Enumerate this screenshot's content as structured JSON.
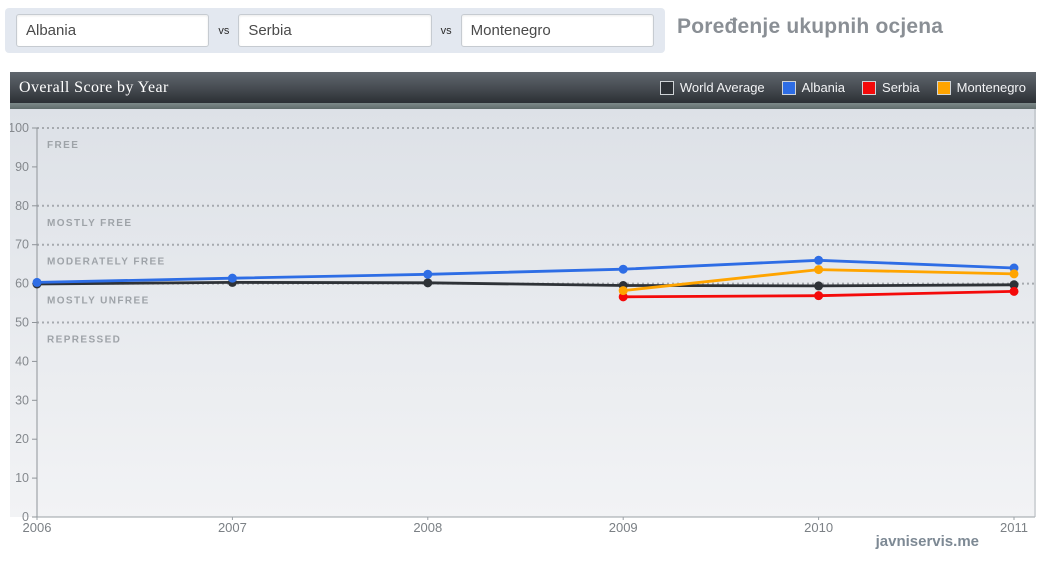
{
  "page": {
    "watermark": "javniservis.me"
  },
  "compare_bar": {
    "separator": "vs",
    "inputs": [
      {
        "value": "Albania"
      },
      {
        "value": "Serbia"
      },
      {
        "value": "Montenegro"
      }
    ],
    "title": "Poređenje ukupnih ocjena"
  },
  "chart": {
    "header_title": "Overall Score by Year",
    "legend": [
      {
        "label": "World Average",
        "color": "#2e3237"
      },
      {
        "label": "Albania",
        "color": "#2e6de5"
      },
      {
        "label": "Serbia",
        "color": "#f40a0a"
      },
      {
        "label": "Montenegro",
        "color": "#ffa400"
      }
    ]
  },
  "chart_data": {
    "type": "line",
    "title": "Overall Score by Year",
    "x": [
      2006,
      2007,
      2008,
      2009,
      2010,
      2011
    ],
    "series": [
      {
        "name": "World Average",
        "color": "#2e3237",
        "values": [
          59.9,
          60.3,
          60.2,
          59.5,
          59.4,
          59.7
        ]
      },
      {
        "name": "Albania",
        "color": "#2e6de5",
        "values": [
          60.3,
          61.4,
          62.4,
          63.7,
          66.0,
          64.0
        ]
      },
      {
        "name": "Serbia",
        "color": "#f40a0a",
        "values": [
          null,
          null,
          null,
          56.6,
          56.9,
          58.0
        ]
      },
      {
        "name": "Montenegro",
        "color": "#ffa400",
        "values": [
          null,
          null,
          null,
          58.2,
          63.6,
          62.5
        ]
      }
    ],
    "ylim": [
      0,
      100
    ],
    "yticks": [
      0,
      10,
      20,
      30,
      40,
      50,
      60,
      70,
      80,
      90,
      100
    ],
    "dotted_gridlines": [
      50,
      60,
      70,
      80,
      100
    ],
    "bands": [
      {
        "label": "FREE",
        "top": 100
      },
      {
        "label": "MOSTLY FREE",
        "top": 80
      },
      {
        "label": "MODERATELY FREE",
        "top": 70
      },
      {
        "label": "MOSTLY UNFREE",
        "top": 60
      },
      {
        "label": "REPRESSED",
        "top": 50
      }
    ],
    "legend_position": "top-right",
    "grid": "dotted-horizontal-only"
  }
}
